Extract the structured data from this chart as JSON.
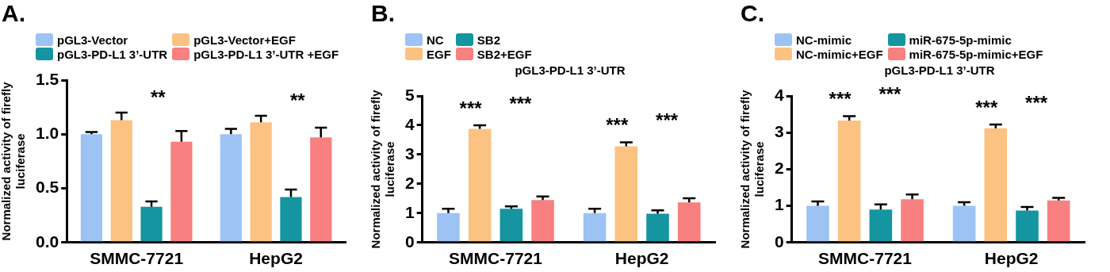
{
  "chart_data": [
    {
      "type": "bar",
      "title": "A.",
      "ylabel": "Normalized activity of firefly luciferase",
      "categories": [
        "SMMC-7721",
        "HepG2"
      ],
      "legend": "top",
      "grid": false,
      "ylim": [
        0,
        1.5
      ],
      "yticks": [
        {
          "value": 0,
          "label": "0.0"
        },
        {
          "value": 0.5,
          "label": "0.5"
        },
        {
          "value": 1,
          "label": "1.0"
        },
        {
          "value": 1.5,
          "label": "1.5"
        }
      ],
      "series": [
        {
          "name": "pGL3-Vector",
          "color": "#9dc3f5",
          "values": [
            1.0,
            1.0
          ],
          "errors": [
            0.02,
            0.05
          ]
        },
        {
          "name": "pGL3-Vector+EGF",
          "color": "#fcc281",
          "values": [
            1.13,
            1.11
          ],
          "errors": [
            0.07,
            0.06
          ]
        },
        {
          "name": "pGL3-PD-L1 3’-UTR",
          "color": "#14959f",
          "values": [
            0.33,
            0.42
          ],
          "errors": [
            0.05,
            0.07
          ]
        },
        {
          "name": "pGL3-PD-L1 3’-UTR +EGF",
          "color": "#f88080",
          "values": [
            0.93,
            0.97
          ],
          "errors": [
            0.1,
            0.09
          ]
        }
      ],
      "annotations": [
        "**",
        "**"
      ]
    },
    {
      "type": "bar",
      "title": "B.",
      "subtitle": "pGL3-PD-L1 3’-UTR",
      "ylabel": "Normalized activity of firefly luciferase",
      "categories": [
        "SMMC-7721",
        "HepG2"
      ],
      "legend": "top",
      "grid": false,
      "ylim": [
        0,
        5
      ],
      "yticks": [
        0,
        1,
        2,
        3,
        4,
        5
      ],
      "series": [
        {
          "name": "NC",
          "color": "#9dc3f5",
          "values": [
            1.0,
            1.0
          ],
          "errors": [
            0.15,
            0.15
          ]
        },
        {
          "name": "EGF",
          "color": "#fcc281",
          "values": [
            3.88,
            3.28
          ],
          "errors": [
            0.12,
            0.14
          ]
        },
        {
          "name": "SB2",
          "color": "#14959f",
          "values": [
            1.15,
            0.98
          ],
          "errors": [
            0.08,
            0.12
          ]
        },
        {
          "name": "SB2+EGF",
          "color": "#f88080",
          "values": [
            1.45,
            1.37
          ],
          "errors": [
            0.12,
            0.14
          ]
        }
      ],
      "annotations": [
        "***",
        "***",
        "***",
        "***"
      ]
    },
    {
      "type": "bar",
      "title": "C.",
      "subtitle": "pGL3-PD-L1 3’-UTR",
      "ylabel": "Normalized activity of firefly luciferase",
      "categories": [
        "SMMC-7721",
        "HepG2"
      ],
      "legend": "top",
      "grid": false,
      "ylim": [
        0,
        4
      ],
      "yticks": [
        0,
        1,
        2,
        3,
        4
      ],
      "series": [
        {
          "name": "NC-mimic",
          "color": "#9dc3f5",
          "values": [
            1.0,
            1.0
          ],
          "errors": [
            0.12,
            0.1
          ]
        },
        {
          "name": "NC-mimic+EGF",
          "color": "#fcc281",
          "values": [
            3.33,
            3.12
          ],
          "errors": [
            0.12,
            0.1
          ]
        },
        {
          "name": "miR-675-5p-mimic",
          "color": "#14959f",
          "values": [
            0.9,
            0.87
          ],
          "errors": [
            0.14,
            0.1
          ]
        },
        {
          "name": "miR-675-5p-mimic+EGF",
          "color": "#f88080",
          "values": [
            1.18,
            1.15
          ],
          "errors": [
            0.13,
            0.07
          ]
        }
      ],
      "annotations": [
        "***",
        "***",
        "***",
        "***"
      ]
    }
  ]
}
